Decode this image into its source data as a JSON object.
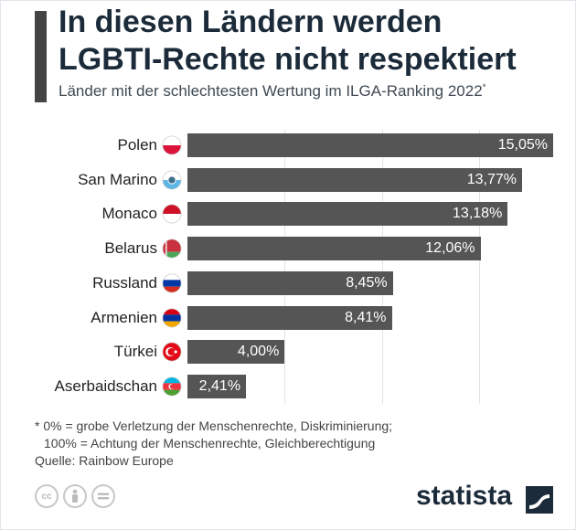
{
  "header": {
    "title_line1": "In diesen Ländern werden",
    "title_line2": "LGBTI-Rechte nicht respektiert",
    "subtitle": "Länder mit der schlechtesten Wertung im ILGA-Ranking 2022",
    "subtitle_mark": "*"
  },
  "chart_data": {
    "type": "bar",
    "orientation": "horizontal",
    "title": "In diesen Ländern werden LGBTI-Rechte nicht respektiert",
    "subtitle": "Länder mit der schlechtesten Wertung im ILGA-Ranking 2022*",
    "categories": [
      "Polen",
      "San Marino",
      "Monaco",
      "Belarus",
      "Russland",
      "Armenien",
      "Türkei",
      "Aserbaidschan"
    ],
    "values": [
      15.05,
      13.77,
      13.18,
      12.06,
      8.45,
      8.41,
      4.0,
      2.41
    ],
    "value_labels": [
      "15,05%",
      "13,77%",
      "13,18%",
      "12,06%",
      "8,45%",
      "8,41%",
      "4,00%",
      "2,41%"
    ],
    "unit": "%",
    "xlim": [
      0,
      16
    ],
    "bar_color": "#555555",
    "grid": true,
    "legend": "none"
  },
  "flags": [
    "poland-flag-icon",
    "san-marino-flag-icon",
    "monaco-flag-icon",
    "belarus-flag-icon",
    "russia-flag-icon",
    "armenia-flag-icon",
    "turkey-flag-icon",
    "azerbaijan-flag-icon"
  ],
  "notes": {
    "note_line1": "* 0% = grobe Verletzung der Menschenrechte, Diskriminierung;",
    "note_line2": "100% = Achtung der Menschenrechte, Gleichberechtigung",
    "source": "Quelle: Rainbow Europe"
  },
  "footer": {
    "brand": "statista",
    "license_icons": [
      "cc-icon",
      "by-icon",
      "nd-icon"
    ]
  },
  "colors": {
    "title": "#1c2b3a",
    "accent": "#444444",
    "bar": "#555555"
  }
}
